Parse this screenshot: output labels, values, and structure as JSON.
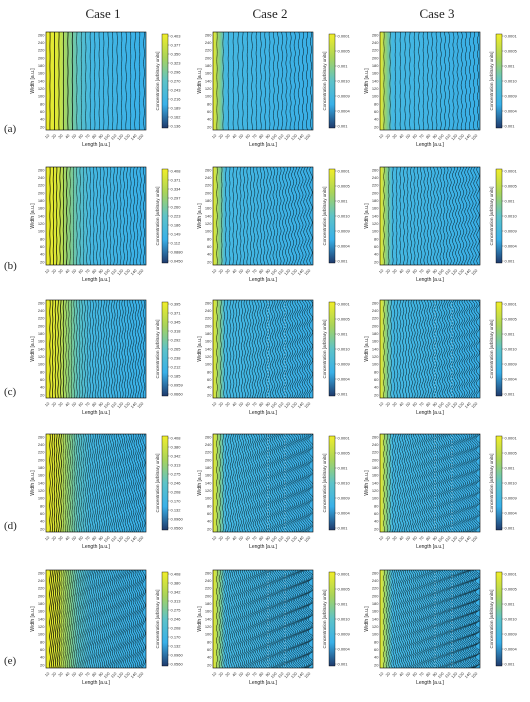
{
  "columns": [
    "Case 1",
    "Case 2",
    "Case 3"
  ],
  "rows": [
    "(a)",
    "(b)",
    "(c)",
    "(d)",
    "(e)"
  ],
  "axes": {
    "xlabel": "Length [a.u.]",
    "ylabel": "Width [a.u.]",
    "colorbar_label": "Concentration [arbitrary units]"
  },
  "x_ticks": [
    "10",
    "20",
    "30",
    "40",
    "50",
    "60",
    "70",
    "80",
    "90",
    "100",
    "110",
    "120",
    "130",
    "140",
    "150"
  ],
  "y_ticks": [
    "260",
    "240",
    "220",
    "200",
    "180",
    "160",
    "140",
    "120",
    "100",
    "80",
    "60",
    "40",
    "20"
  ],
  "colorbar_ticks": [
    [
      [
        "0.403",
        "0.377",
        "0.350",
        "0.323",
        "0.296",
        "0.270",
        "0.243",
        "0.216",
        "0.189",
        "0.162",
        "0.136"
      ],
      [
        "0.0001",
        "0.0005",
        "0.001",
        "0.0010",
        "0.0009",
        "0.0004",
        "0.001"
      ],
      [
        "0.0001",
        "0.0005",
        "0.001",
        "0.0010",
        "0.0009",
        "0.0004",
        "0.001"
      ]
    ],
    [
      [
        "0.408",
        "0.371",
        "0.334",
        "0.297",
        "0.260",
        "0.223",
        "0.186",
        "0.149",
        "0.112",
        "0.0880",
        "0.0450"
      ],
      [
        "0.0001",
        "0.0005",
        "0.001",
        "0.0010",
        "0.0009",
        "0.0004",
        "0.001"
      ],
      [
        "0.0001",
        "0.0005",
        "0.001",
        "0.0010",
        "0.0009",
        "0.0004",
        "0.001"
      ]
    ],
    [
      [
        "0.395",
        "0.371",
        "0.345",
        "0.318",
        "0.292",
        "0.265",
        "0.238",
        "0.212",
        "0.185",
        "0.0959",
        "0.0660"
      ],
      [
        "0.0001",
        "0.0005",
        "0.001",
        "0.0010",
        "0.0009",
        "0.0004",
        "0.001"
      ],
      [
        "0.0001",
        "0.0005",
        "0.001",
        "0.0010",
        "0.0009",
        "0.0004",
        "0.001"
      ]
    ],
    [
      [
        "0.408",
        "0.380",
        "0.342",
        "0.313",
        "0.275",
        "0.246",
        "0.208",
        "0.170",
        "0.132",
        "0.0960",
        "0.0560"
      ],
      [
        "0.0001",
        "0.0005",
        "0.001",
        "0.0010",
        "0.0009",
        "0.0004",
        "0.001"
      ],
      [
        "0.0001",
        "0.0005",
        "0.001",
        "0.0010",
        "0.0009",
        "0.0004",
        "0.001"
      ]
    ],
    [
      [
        "0.408",
        "0.380",
        "0.342",
        "0.313",
        "0.275",
        "0.246",
        "0.208",
        "0.170",
        "0.132",
        "0.0960",
        "0.0560"
      ],
      [
        "0.0001",
        "0.0005",
        "0.001",
        "0.0010",
        "0.0009",
        "0.0004",
        "0.001"
      ],
      [
        "0.0001",
        "0.0005",
        "0.001",
        "0.0010",
        "0.0009",
        "0.0004",
        "0.001"
      ]
    ]
  ],
  "panel_style": {
    "colormap": [
      "#1f3a6b",
      "#39b0e8",
      "#5ec3c8",
      "#a9d45a",
      "#f1ee2a"
    ],
    "contour_color": "#000000",
    "wave_strength_by_row": [
      0.25,
      0.45,
      0.6,
      0.8,
      1.0
    ],
    "extra_waves_by_case": [
      0,
      1,
      1
    ]
  }
}
